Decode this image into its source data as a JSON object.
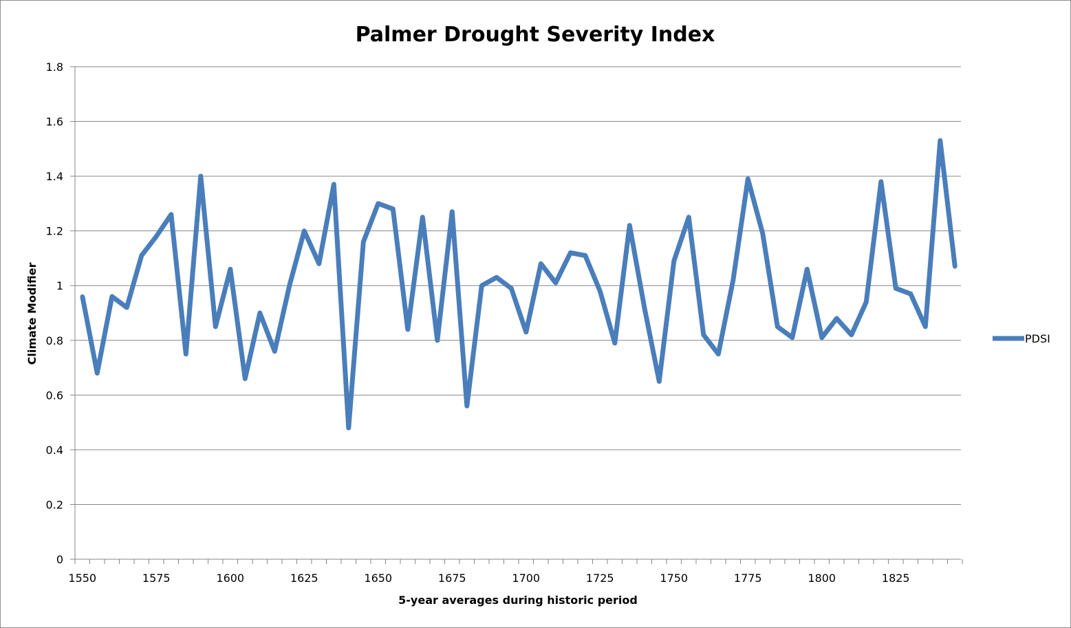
{
  "chart_data": {
    "type": "line",
    "title": "Palmer Drought Severity Index",
    "xlabel": "5-year averages during historic period",
    "ylabel": "Climate Modifier",
    "ylim": [
      0,
      1.8
    ],
    "yticks": [
      "0",
      "0.2",
      "0.4",
      "0.6",
      "0.8",
      "1",
      "1.2",
      "1.4",
      "1.6",
      "1.8"
    ],
    "xticks": [
      "1550",
      "1575",
      "1600",
      "1625",
      "1650",
      "1675",
      "1700",
      "1725",
      "1750",
      "1775",
      "1800",
      "1825"
    ],
    "grid": "horizontal",
    "legend": "right",
    "series_color": "#4a7ebb",
    "series": [
      {
        "name": "PDSI",
        "x": [
          1550,
          1555,
          1560,
          1565,
          1570,
          1575,
          1580,
          1585,
          1590,
          1595,
          1600,
          1605,
          1610,
          1615,
          1620,
          1625,
          1630,
          1635,
          1640,
          1645,
          1650,
          1655,
          1660,
          1665,
          1670,
          1675,
          1680,
          1685,
          1690,
          1695,
          1700,
          1705,
          1710,
          1715,
          1720,
          1725,
          1730,
          1735,
          1740,
          1745,
          1750,
          1755,
          1760,
          1765,
          1770,
          1775,
          1780,
          1785,
          1790,
          1795,
          1800,
          1805,
          1810,
          1815,
          1820,
          1825,
          1830,
          1835,
          1840,
          1845
        ],
        "values": [
          0.96,
          0.68,
          0.96,
          0.92,
          1.11,
          1.18,
          1.26,
          0.75,
          1.4,
          0.85,
          1.06,
          0.66,
          0.9,
          0.76,
          1.0,
          1.2,
          1.08,
          1.37,
          0.48,
          1.16,
          1.3,
          1.28,
          0.84,
          1.25,
          0.8,
          1.27,
          0.56,
          1.0,
          1.03,
          0.99,
          0.83,
          1.08,
          1.01,
          1.12,
          1.11,
          0.98,
          0.79,
          1.22,
          0.92,
          0.65,
          1.09,
          1.25,
          0.82,
          0.75,
          1.02,
          1.39,
          1.19,
          0.85,
          0.81,
          1.06,
          0.81,
          0.88,
          0.82,
          0.94,
          1.38,
          0.99,
          0.97,
          0.85,
          1.53,
          1.07
        ]
      }
    ]
  }
}
